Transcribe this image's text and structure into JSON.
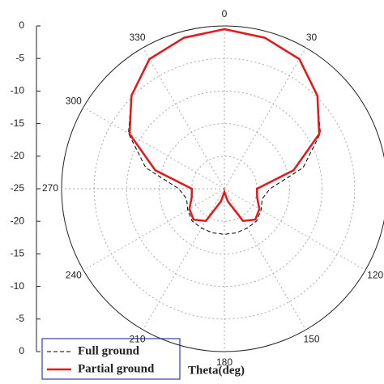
{
  "chart_data": {
    "type": "polar",
    "axis_label": "Theta(deg)",
    "theta": [
      0,
      15,
      30,
      45,
      60,
      75,
      90,
      105,
      120,
      135,
      150,
      165,
      180,
      195,
      210,
      225,
      240,
      255,
      270,
      285,
      300,
      315,
      330,
      345
    ],
    "series": [
      {
        "name": "Full ground",
        "color": "#000000",
        "dashed": true,
        "values": [
          -0.5,
          -1,
          -2,
          -4.8,
          -8,
          -12.5,
          -18,
          -19,
          -18.5,
          -18,
          -18,
          -18,
          -18,
          -18,
          -18,
          -18,
          -18.5,
          -19,
          -18,
          -12.5,
          -8,
          -4.8,
          -2,
          -1
        ]
      },
      {
        "name": "Partial ground",
        "color": "#e0191b",
        "dashed": false,
        "values": [
          -0.5,
          -1,
          -2,
          -4.8,
          -8.2,
          -14,
          -20,
          -19.8,
          -18.8,
          -18.3,
          -19.3,
          -23,
          -24.5,
          -23,
          -19.3,
          -18.3,
          -18.8,
          -19.8,
          -20,
          -14,
          -8.2,
          -4.8,
          -2,
          -1
        ]
      }
    ],
    "rlim": [
      -25,
      0
    ],
    "rticks": [
      -25,
      -20,
      -15,
      -10,
      -5,
      0
    ],
    "thetaticks": [
      0,
      30,
      120,
      150,
      180,
      210,
      240,
      270,
      300,
      330
    ],
    "grid": true
  }
}
